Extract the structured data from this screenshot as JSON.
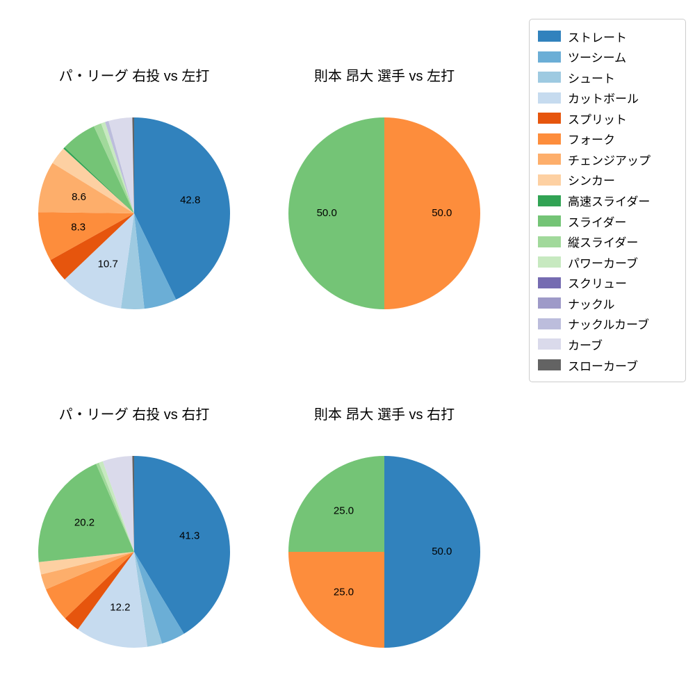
{
  "figure": {
    "background": "#ffffff"
  },
  "legend": {
    "items": [
      {
        "label": "ストレート",
        "color": "#3182bd"
      },
      {
        "label": "ツーシーム",
        "color": "#6baed6"
      },
      {
        "label": "シュート",
        "color": "#9ecae1"
      },
      {
        "label": "カットボール",
        "color": "#c6dbef"
      },
      {
        "label": "スプリット",
        "color": "#e6550d"
      },
      {
        "label": "フォーク",
        "color": "#fd8d3c"
      },
      {
        "label": "チェンジアップ",
        "color": "#fdae6b"
      },
      {
        "label": "シンカー",
        "color": "#fdd0a2"
      },
      {
        "label": "高速スライダー",
        "color": "#31a354"
      },
      {
        "label": "スライダー",
        "color": "#74c476"
      },
      {
        "label": "縦スライダー",
        "color": "#a1d99b"
      },
      {
        "label": "パワーカーブ",
        "color": "#c7e9c0"
      },
      {
        "label": "スクリュー",
        "color": "#756bb1"
      },
      {
        "label": "ナックル",
        "color": "#9e9ac8"
      },
      {
        "label": "ナックルカーブ",
        "color": "#bcbddc"
      },
      {
        "label": "カーブ",
        "color": "#dadaeb"
      },
      {
        "label": "スローカーブ",
        "color": "#636363"
      }
    ]
  },
  "chart_data": [
    {
      "type": "pie",
      "title": "パ・リーグ 右投 vs 左打",
      "start_angle": "top",
      "direction": "clockwise",
      "labels_shown_for_values_at_least": 7,
      "slices": [
        {
          "name": "ストレート",
          "value": 42.8,
          "labeled": true
        },
        {
          "name": "ツーシーム",
          "value": 5.5,
          "labeled": false
        },
        {
          "name": "シュート",
          "value": 3.9,
          "labeled": false
        },
        {
          "name": "カットボール",
          "value": 10.7,
          "labeled": true
        },
        {
          "name": "スプリット",
          "value": 4.0,
          "labeled": false
        },
        {
          "name": "フォーク",
          "value": 8.3,
          "labeled": true
        },
        {
          "name": "チェンジアップ",
          "value": 8.6,
          "labeled": true
        },
        {
          "name": "シンカー",
          "value": 3.0,
          "labeled": false
        },
        {
          "name": "高速スライダー",
          "value": 0.3,
          "labeled": false
        },
        {
          "name": "スライダー",
          "value": 6.0,
          "labeled": false
        },
        {
          "name": "縦スライダー",
          "value": 1.3,
          "labeled": false
        },
        {
          "name": "パワーカーブ",
          "value": 0.7,
          "labeled": false
        },
        {
          "name": "ナックルカーブ",
          "value": 0.6,
          "labeled": false
        },
        {
          "name": "カーブ",
          "value": 4.0,
          "labeled": false
        },
        {
          "name": "スローカーブ",
          "value": 0.3,
          "labeled": false
        }
      ]
    },
    {
      "type": "pie",
      "title": "則本 昂大 選手 vs 左打",
      "start_angle": "top",
      "direction": "clockwise",
      "slices": [
        {
          "name": "フォーク",
          "value": 50.0,
          "labeled": true
        },
        {
          "name": "スライダー",
          "value": 50.0,
          "labeled": true
        }
      ]
    },
    {
      "type": "pie",
      "title": "パ・リーグ 右投 vs 右打",
      "start_angle": "top",
      "direction": "clockwise",
      "labels_shown_for_values_at_least": 7,
      "slices": [
        {
          "name": "ストレート",
          "value": 41.3,
          "labeled": true
        },
        {
          "name": "ツーシーム",
          "value": 4.0,
          "labeled": false
        },
        {
          "name": "シュート",
          "value": 2.5,
          "labeled": false
        },
        {
          "name": "カットボール",
          "value": 12.2,
          "labeled": true
        },
        {
          "name": "スプリット",
          "value": 2.8,
          "labeled": false
        },
        {
          "name": "フォーク",
          "value": 5.8,
          "labeled": false
        },
        {
          "name": "チェンジアップ",
          "value": 2.6,
          "labeled": false
        },
        {
          "name": "シンカー",
          "value": 2.1,
          "labeled": false
        },
        {
          "name": "スライダー",
          "value": 20.2,
          "labeled": true
        },
        {
          "name": "縦スライダー",
          "value": 0.5,
          "labeled": false
        },
        {
          "name": "パワーカーブ",
          "value": 0.7,
          "labeled": false
        },
        {
          "name": "カーブ",
          "value": 5.0,
          "labeled": false
        },
        {
          "name": "スローカーブ",
          "value": 0.3,
          "labeled": false
        }
      ]
    },
    {
      "type": "pie",
      "title": "則本 昂大 選手 vs 右打",
      "start_angle": "top",
      "direction": "clockwise",
      "slices": [
        {
          "name": "ストレート",
          "value": 50.0,
          "labeled": true
        },
        {
          "name": "フォーク",
          "value": 25.0,
          "labeled": true
        },
        {
          "name": "スライダー",
          "value": 25.0,
          "labeled": true
        }
      ]
    }
  ]
}
